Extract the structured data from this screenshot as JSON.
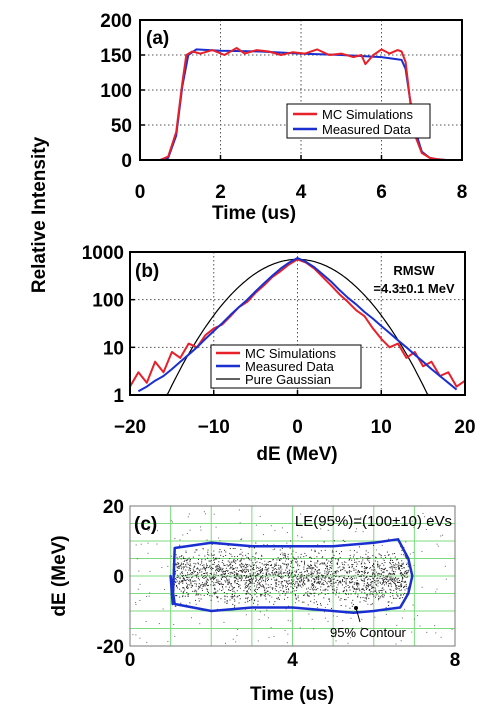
{
  "chart_data": [
    {
      "panel": "(a)",
      "type": "line",
      "xlabel": "Time (us)",
      "ylabel": "Relative Intensity",
      "xlim": [
        0,
        8
      ],
      "ylim": [
        0,
        200
      ],
      "xticks": [
        "0",
        "2",
        "4",
        "6",
        "8"
      ],
      "yticks": [
        "0",
        "50",
        "100",
        "150",
        "200"
      ],
      "grid": "dotted",
      "legend_position": "bottom-right",
      "series": [
        {
          "name": "MC Simulations",
          "color": "#e8202a",
          "x": [
            0.5,
            0.7,
            0.9,
            1.05,
            1.15,
            1.3,
            1.5,
            1.8,
            2.1,
            2.4,
            2.6,
            2.9,
            3.2,
            3.5,
            3.8,
            4.1,
            4.4,
            4.7,
            5.0,
            5.3,
            5.5,
            5.6,
            5.8,
            6.0,
            6.2,
            6.4,
            6.5,
            6.6,
            6.7,
            6.8,
            7.0,
            7.2,
            7.4,
            7.6
          ],
          "y": [
            0,
            5,
            40,
            110,
            150,
            155,
            152,
            157,
            150,
            160,
            152,
            157,
            155,
            150,
            154,
            152,
            158,
            150,
            152,
            147,
            150,
            137,
            150,
            158,
            152,
            157,
            155,
            140,
            90,
            40,
            10,
            3,
            1,
            0
          ]
        },
        {
          "name": "Measured Data",
          "color": "#1a2fd0",
          "x": [
            0.5,
            0.7,
            0.9,
            1.05,
            1.2,
            1.4,
            2.0,
            3.0,
            4.0,
            5.0,
            6.0,
            6.5,
            6.6,
            6.7,
            6.85,
            7.0,
            7.2,
            7.4,
            7.6
          ],
          "y": [
            0,
            3,
            35,
            105,
            150,
            158,
            156,
            155,
            152,
            150,
            147,
            143,
            130,
            90,
            40,
            12,
            3,
            1,
            0
          ]
        }
      ]
    },
    {
      "panel": "(b)",
      "type": "line",
      "xlabel": "dE (MeV)",
      "ylabel": "",
      "xlim": [
        -20,
        20
      ],
      "ylim": [
        1,
        1000
      ],
      "yscale": "log",
      "xticks": [
        "-20",
        "-10",
        "0",
        "10",
        "20"
      ],
      "yticks": [
        "1",
        "10",
        "100",
        "1000"
      ],
      "grid": "dotted",
      "legend_position": "bottom-center",
      "annotation": [
        "RMSW",
        "=4.3±0.1 MeV"
      ],
      "series": [
        {
          "name": "MC Simulations",
          "color": "#e8202a",
          "x": [
            -20,
            -19,
            -18,
            -17,
            -16,
            -15,
            -14,
            -13,
            -12,
            -11,
            -10,
            -9,
            -8,
            -7,
            -6,
            -5,
            -4,
            -3,
            -2,
            -1,
            0,
            1,
            2,
            3,
            4,
            5,
            6,
            7,
            8,
            9,
            10,
            11,
            12,
            13,
            14,
            15,
            16,
            17,
            18,
            19,
            20
          ],
          "y": [
            1.5,
            3,
            1.8,
            5,
            3,
            8,
            6,
            12,
            10,
            18,
            25,
            30,
            45,
            70,
            90,
            140,
            200,
            300,
            400,
            550,
            700,
            600,
            450,
            300,
            200,
            130,
            90,
            60,
            45,
            25,
            15,
            10,
            12,
            6,
            8,
            4,
            5,
            2.5,
            3,
            1.5,
            2
          ]
        },
        {
          "name": "Measured Data",
          "color": "#1a2fd0",
          "x": [
            -19,
            -18,
            -17,
            -16,
            -15,
            -14,
            -13,
            -12,
            -11,
            -10,
            -9,
            -8,
            -7,
            -6,
            -5,
            -4,
            -3,
            -2,
            -1,
            0,
            1,
            2,
            3,
            4,
            5,
            6,
            7,
            8,
            9,
            10,
            11,
            12,
            13,
            14,
            15,
            16,
            17,
            18,
            19
          ],
          "y": [
            1.2,
            1.5,
            2,
            2.5,
            3.5,
            5,
            7,
            10,
            15,
            22,
            32,
            48,
            70,
            100,
            150,
            220,
            320,
            450,
            600,
            750,
            620,
            480,
            340,
            240,
            160,
            110,
            80,
            55,
            40,
            28,
            20,
            14,
            10,
            7,
            5,
            3.5,
            2.5,
            1.8,
            1.3
          ]
        },
        {
          "name": "Pure Gaussian",
          "color": "#000000",
          "function": "gaussian",
          "amplitude": 700,
          "mean": 0,
          "sigma": 4.3
        }
      ]
    },
    {
      "panel": "(c)",
      "type": "scatter",
      "xlabel": "Time (us)",
      "ylabel": "dE (MeV)",
      "xlim": [
        0,
        8
      ],
      "ylim": [
        -20,
        20
      ],
      "xticks": [
        "0",
        "4",
        "8"
      ],
      "yticks": [
        "-20",
        "0",
        "20"
      ],
      "grid": "solid green",
      "annotation": "LE(95%)=(100±10) eVs",
      "contour_label": "95% Contour",
      "contour": {
        "color": "#1a2fd0",
        "x": [
          1.05,
          1.1,
          2.0,
          3.0,
          4.0,
          5.0,
          6.0,
          6.6,
          6.85,
          6.95,
          6.85,
          6.65,
          6.0,
          5.5,
          5.0,
          4.0,
          3.0,
          2.0,
          1.1,
          1.0,
          1.05
        ],
        "y": [
          -8,
          8,
          9.5,
          8.5,
          8.5,
          8.5,
          9.5,
          10.5,
          5,
          0,
          -5,
          -9,
          -10,
          -10.5,
          -10,
          -9,
          -9,
          -10,
          -8,
          0,
          -8
        ]
      }
    }
  ]
}
